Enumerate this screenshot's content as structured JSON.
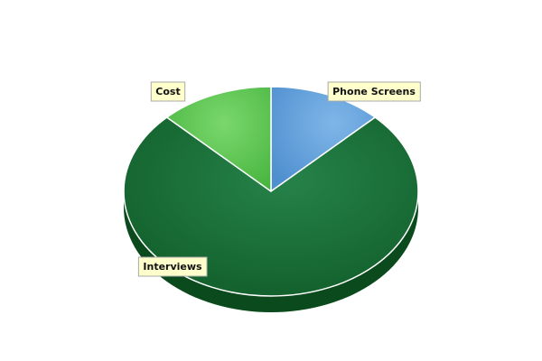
{
  "chart_data": {
    "type": "pie",
    "style": "3d",
    "title": "",
    "slices": [
      {
        "label": "Phone Screens",
        "value": 12.5,
        "color": "#5b9bd5",
        "side_color": "#2e5f96"
      },
      {
        "label": "Interviews",
        "value": 75,
        "color": "#1d7a40",
        "side_color": "#0b4a1c"
      },
      {
        "label": "Cost",
        "value": 12.5,
        "color": "#5dc95a",
        "side_color": "#2e8a24"
      }
    ],
    "legend": "none",
    "label_style": "callout-boxes"
  }
}
